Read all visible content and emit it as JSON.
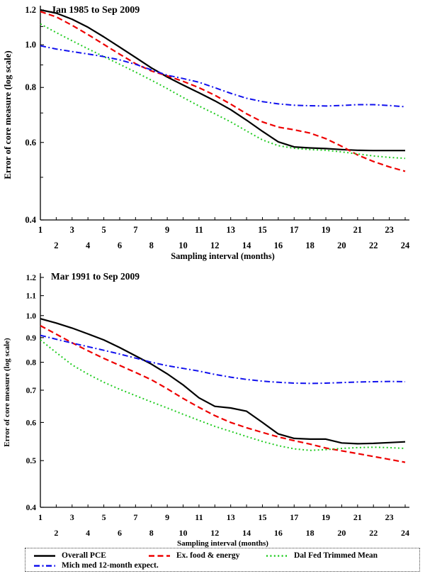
{
  "page": {
    "background": "#ffffff"
  },
  "legend": {
    "entries": [
      {
        "label": "Overall PCE",
        "color": "#000000",
        "style": "solid"
      },
      {
        "label": "Ex. food & energy",
        "color": "#ee0000",
        "style": "dashed"
      },
      {
        "label": "Dal Fed Trimmed Mean",
        "color": "#22cc22",
        "style": "dotted"
      },
      {
        "label": "Mich med 12-month expect.",
        "color": "#1111ee",
        "style": "dashdot"
      }
    ],
    "position": "bottom"
  },
  "chart_data": [
    {
      "type": "line",
      "title": "Jan 1985 to Sep 2009",
      "xlabel": "Sampling interval (months)",
      "ylabel": "Error of core measure (log scale)",
      "yscale": "log",
      "ylim": [
        0.4,
        1.2
      ],
      "yticks_labeled": [
        1.2,
        1.0,
        0.8,
        0.6,
        0.4
      ],
      "yticks_minor": [
        1.1,
        0.9,
        0.7,
        0.5
      ],
      "x": [
        1,
        2,
        3,
        4,
        5,
        6,
        7,
        8,
        9,
        10,
        11,
        12,
        13,
        14,
        15,
        16,
        17,
        18,
        19,
        20,
        21,
        22,
        23,
        24
      ],
      "grid": false,
      "series": [
        {
          "name": "Overall PCE",
          "color": "#000000",
          "style": "solid",
          "values": [
            1.2,
            1.18,
            1.143,
            1.096,
            1.042,
            0.988,
            0.936,
            0.886,
            0.845,
            0.81,
            0.778,
            0.746,
            0.712,
            0.674,
            0.636,
            0.602,
            0.586,
            0.583,
            0.581,
            0.578,
            0.576,
            0.575,
            0.575,
            0.575
          ]
        },
        {
          "name": "Ex. food & energy",
          "color": "#ee0000",
          "style": "dashed",
          "values": [
            1.19,
            1.157,
            1.107,
            1.055,
            1.002,
            0.952,
            0.906,
            0.872,
            0.85,
            0.826,
            0.799,
            0.768,
            0.733,
            0.697,
            0.668,
            0.65,
            0.641,
            0.63,
            0.612,
            0.588,
            0.562,
            0.543,
            0.528,
            0.516
          ]
        },
        {
          "name": "Dal Fed Trimmed Mean",
          "color": "#22cc22",
          "style": "dotted",
          "values": [
            1.115,
            1.066,
            1.021,
            0.979,
            0.94,
            0.903,
            0.867,
            0.831,
            0.795,
            0.759,
            0.726,
            0.697,
            0.668,
            0.637,
            0.608,
            0.59,
            0.582,
            0.578,
            0.576,
            0.571,
            0.565,
            0.559,
            0.555,
            0.552
          ]
        },
        {
          "name": "Mich med 12-month expect.",
          "color": "#1111ee",
          "style": "dashdot",
          "values": [
            0.995,
            0.978,
            0.965,
            0.953,
            0.94,
            0.924,
            0.903,
            0.877,
            0.853,
            0.838,
            0.822,
            0.799,
            0.776,
            0.756,
            0.743,
            0.734,
            0.729,
            0.727,
            0.726,
            0.728,
            0.731,
            0.731,
            0.728,
            0.723
          ]
        }
      ]
    },
    {
      "type": "line",
      "title": "Mar 1991 to Sep 2009",
      "xlabel": "Sampling interval (months)",
      "ylabel": "Error of core measure (log scale)",
      "yscale": "log",
      "ylim": [
        0.4,
        1.2
      ],
      "yticks_labeled": [
        1.2,
        1.1,
        1.0,
        0.9,
        0.8,
        0.7,
        0.6,
        0.5,
        0.4
      ],
      "yticks_minor": [],
      "x": [
        1,
        2,
        3,
        4,
        5,
        6,
        7,
        8,
        9,
        10,
        11,
        12,
        13,
        14,
        15,
        16,
        17,
        18,
        19,
        20,
        21,
        22,
        23,
        24
      ],
      "grid": false,
      "series": [
        {
          "name": "Overall PCE",
          "color": "#000000",
          "style": "solid",
          "values": [
            0.985,
            0.965,
            0.942,
            0.916,
            0.89,
            0.858,
            0.825,
            0.793,
            0.757,
            0.718,
            0.675,
            0.648,
            0.643,
            0.633,
            0.6,
            0.568,
            0.556,
            0.554,
            0.554,
            0.544,
            0.542,
            0.543,
            0.545,
            0.547
          ]
        },
        {
          "name": "Ex. food & energy",
          "color": "#ee0000",
          "style": "dashed",
          "values": [
            0.953,
            0.915,
            0.878,
            0.845,
            0.815,
            0.788,
            0.762,
            0.736,
            0.705,
            0.673,
            0.645,
            0.62,
            0.6,
            0.585,
            0.572,
            0.56,
            0.55,
            0.541,
            0.531,
            0.524,
            0.517,
            0.51,
            0.503,
            0.496
          ]
        },
        {
          "name": "Dal Fed Trimmed Mean",
          "color": "#22cc22",
          "style": "dotted",
          "values": [
            0.89,
            0.838,
            0.79,
            0.756,
            0.727,
            0.703,
            0.682,
            0.662,
            0.643,
            0.624,
            0.606,
            0.589,
            0.575,
            0.561,
            0.548,
            0.537,
            0.529,
            0.525,
            0.527,
            0.53,
            0.532,
            0.533,
            0.532,
            0.53
          ]
        },
        {
          "name": "Mich med 12-month expect.",
          "color": "#1111ee",
          "style": "dashdot",
          "values": [
            0.91,
            0.893,
            0.877,
            0.862,
            0.847,
            0.832,
            0.816,
            0.8,
            0.787,
            0.777,
            0.767,
            0.755,
            0.745,
            0.737,
            0.731,
            0.727,
            0.724,
            0.723,
            0.724,
            0.726,
            0.728,
            0.729,
            0.73,
            0.729
          ]
        }
      ]
    }
  ]
}
